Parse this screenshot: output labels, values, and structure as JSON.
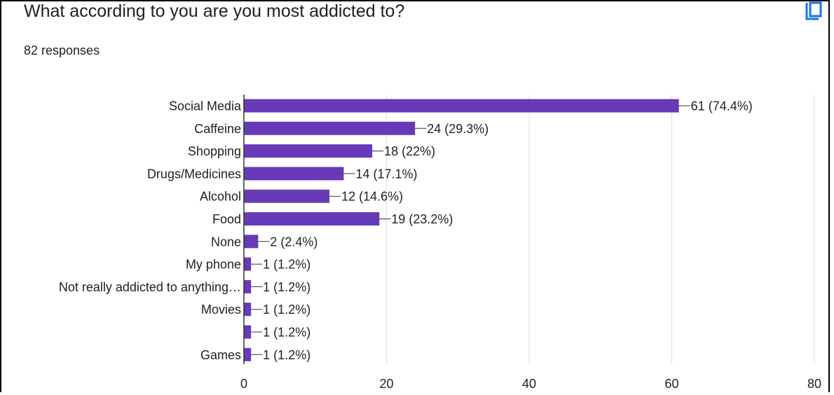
{
  "question": {
    "title": "What according to you are you most addicted to?",
    "responses": "82 responses"
  },
  "toolbar": {
    "copy_icon": "copy-chart-icon"
  },
  "colors": {
    "bar": "#673ab7",
    "grid": "#e0e0e0",
    "axis": "#333333",
    "text": "#202124"
  },
  "chart_data": {
    "type": "bar",
    "orientation": "horizontal",
    "categories": [
      "Social Media",
      "Caffeine",
      "Shopping",
      "Drugs/Medicines",
      "Alcohol",
      "Food",
      "None",
      "My phone",
      "Not really addicted to anything…",
      "Movies",
      "",
      "Games"
    ],
    "values": [
      61,
      24,
      18,
      14,
      12,
      19,
      2,
      1,
      1,
      1,
      1,
      1
    ],
    "data_labels": [
      "61 (74.4%)",
      "24 (29.3%)",
      "18 (22%)",
      "14 (17.1%)",
      "12 (14.6%)",
      "19 (23.2%)",
      "2 (2.4%)",
      "1 (1.2%)",
      "1 (1.2%)",
      "1 (1.2%)",
      "1 (1.2%)",
      "1 (1.2%)"
    ],
    "xlim": [
      0,
      80
    ],
    "xticks": [
      0,
      20,
      40,
      60,
      80
    ],
    "grid": true,
    "legend": "none"
  }
}
